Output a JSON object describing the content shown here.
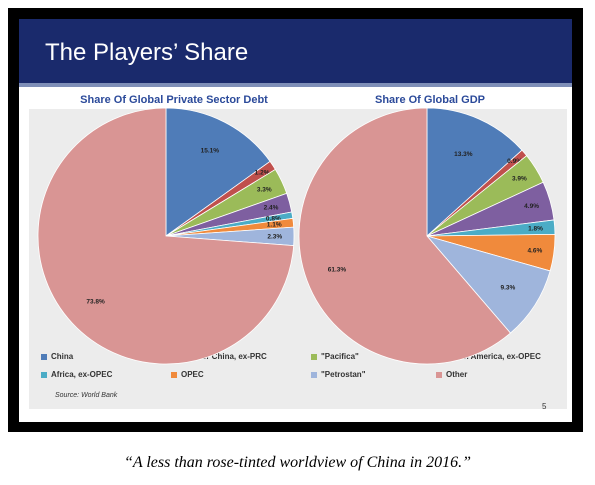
{
  "slide": {
    "title": "The Players’ Share",
    "source": "Source: World Bank",
    "page_number": "5"
  },
  "caption": "“A less than rose-tinted worldview of China in 2016.”",
  "legend": [
    {
      "label": "China",
      "color": "#4f7cb8"
    },
    {
      "label": "Greater China, ex-PRC",
      "color": "#c0504d"
    },
    {
      "label": "\"Pacifica\"",
      "color": "#9bbb59"
    },
    {
      "label": "South America, ex-OPEC",
      "color": "#7e5fa0"
    },
    {
      "label": "Africa, ex-OPEC",
      "color": "#4bacc6"
    },
    {
      "label": "OPEC",
      "color": "#f08a3c"
    },
    {
      "label": "\"Petrostan\"",
      "color": "#9fb5dc"
    },
    {
      "label": "Other",
      "color": "#d99594"
    }
  ],
  "chart_data": [
    {
      "type": "pie",
      "title": "Share Of Global Private Sector Debt",
      "categories": [
        "China",
        "Greater China, ex-PRC",
        "\"Pacifica\"",
        "South America, ex-OPEC",
        "Africa, ex-OPEC",
        "OPEC",
        "\"Petrostan\"",
        "Other"
      ],
      "values": [
        15.1,
        1.2,
        3.3,
        2.4,
        0.8,
        1.1,
        2.3,
        73.8
      ],
      "labels": [
        "15.1%",
        "1.2%",
        "3.3%",
        "2.4%",
        "0.8%",
        "1.1%",
        "2.3%",
        "73.8%"
      ]
    },
    {
      "type": "pie",
      "title": "Share Of Global GDP",
      "categories": [
        "China",
        "Greater China, ex-PRC",
        "\"Pacifica\"",
        "South America, ex-OPEC",
        "Africa, ex-OPEC",
        "OPEC",
        "\"Petrostan\"",
        "Other"
      ],
      "values": [
        13.3,
        0.9,
        3.9,
        4.9,
        1.8,
        4.6,
        9.3,
        61.3
      ],
      "labels": [
        "13.3%",
        "0.9%",
        "3.9%",
        "4.9%",
        "1.8%",
        "4.6%",
        "9.3%",
        "61.3%"
      ]
    }
  ]
}
